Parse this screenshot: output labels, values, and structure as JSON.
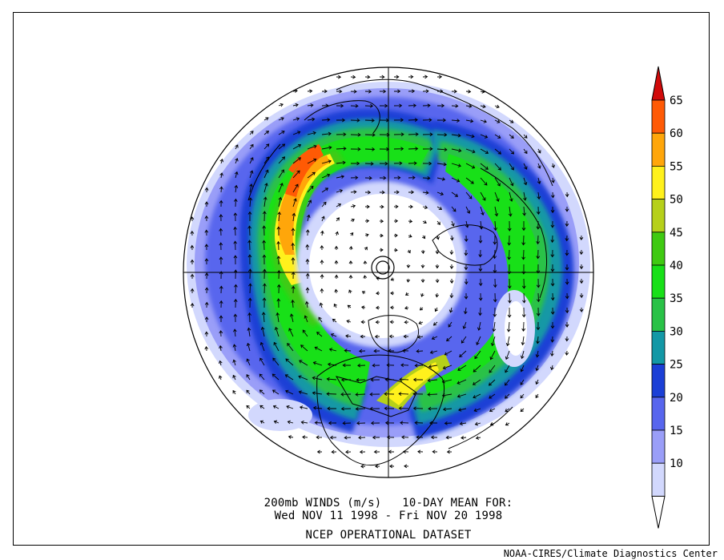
{
  "map": {
    "type": "polar-stereographic",
    "hemisphere": "north",
    "variable": "200mb vector wind speed"
  },
  "title": {
    "line1": "200mb WINDS (m/s)   10-DAY MEAN FOR:",
    "line2": "Wed NOV 11 1998 - Fri NOV 20 1998",
    "line3": "NCEP OPERATIONAL DATASET"
  },
  "credit": "NOAA-CIRES/Climate Diagnostics Center",
  "colorbar": {
    "levels": [
      "10",
      "15",
      "20",
      "25",
      "30",
      "35",
      "40",
      "45",
      "50",
      "55",
      "60",
      "65"
    ],
    "colors": {
      "10": "#d2d8fd",
      "15": "#9a9ef8",
      "20": "#5866ee",
      "25": "#1b3fd6",
      "30": "#1398a6",
      "35": "#29c247",
      "40": "#18e018",
      "45": "#3fca12",
      "50": "#b6d01a",
      "55": "#fff11c",
      "60": "#ffa60a",
      "65": "#ff5a05",
      "max": "#d10a0a"
    }
  }
}
